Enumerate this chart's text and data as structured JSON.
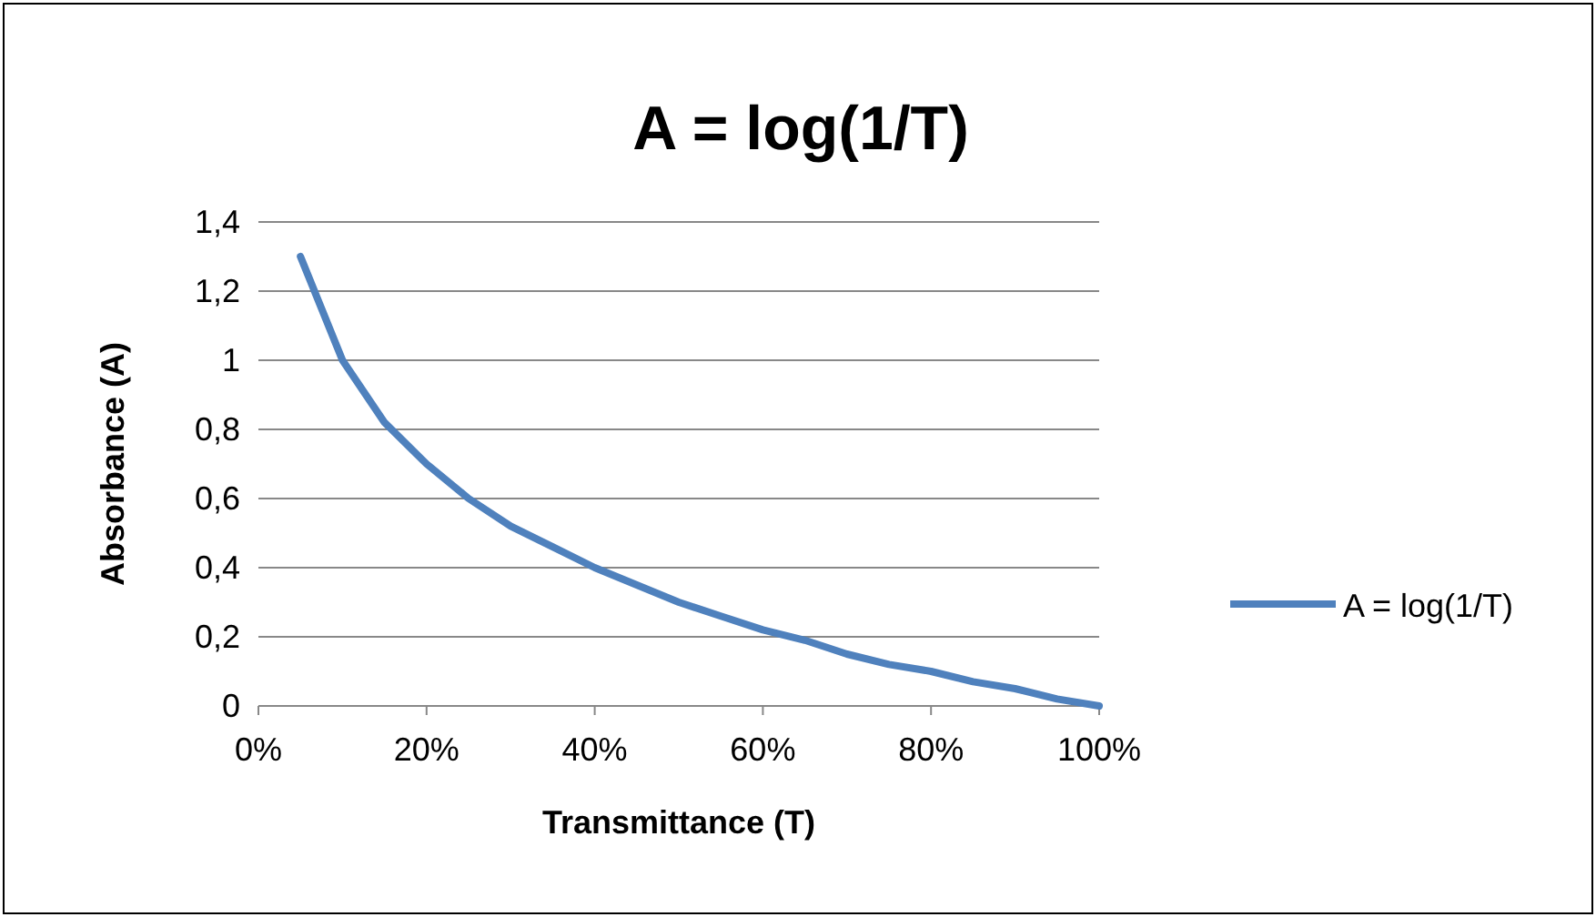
{
  "chart_data": {
    "type": "line",
    "title": "A = log(1/T)",
    "xlabel": "Transmittance (T)",
    "ylabel": "Absorbance (A)",
    "x": [
      5,
      10,
      15,
      20,
      25,
      30,
      35,
      40,
      45,
      50,
      55,
      60,
      65,
      70,
      75,
      80,
      85,
      90,
      95,
      100
    ],
    "series": [
      {
        "name": "A = log(1/T)",
        "color": "#4f81bd",
        "values": [
          1.3,
          1,
          0.82,
          0.7,
          0.6,
          0.52,
          0.46,
          0.4,
          0.35,
          0.3,
          0.26,
          0.22,
          0.19,
          0.15,
          0.12,
          0.1,
          0.07,
          0.05,
          0.02,
          0
        ]
      }
    ],
    "xlim": [
      0,
      100
    ],
    "xticks": [
      {
        "value": 0,
        "label": "0%"
      },
      {
        "value": 20,
        "label": "20%"
      },
      {
        "value": 40,
        "label": "40%"
      },
      {
        "value": 60,
        "label": "60%"
      },
      {
        "value": 80,
        "label": "80%"
      },
      {
        "value": 100,
        "label": "100%"
      }
    ],
    "ylim": [
      0,
      1.4
    ],
    "yticks": [
      0,
      {
        "value": 0.2,
        "label": "0,2"
      },
      {
        "value": 0.4,
        "label": "0,4"
      },
      {
        "value": 0.6,
        "label": "0,6"
      },
      {
        "value": 0.8,
        "label": "0,8"
      },
      1,
      {
        "value": 1.2,
        "label": "1,2"
      },
      {
        "value": 1.4,
        "label": "1,4"
      }
    ],
    "grid": "y",
    "legend": "right",
    "marker": "none",
    "line_style": "solid"
  }
}
